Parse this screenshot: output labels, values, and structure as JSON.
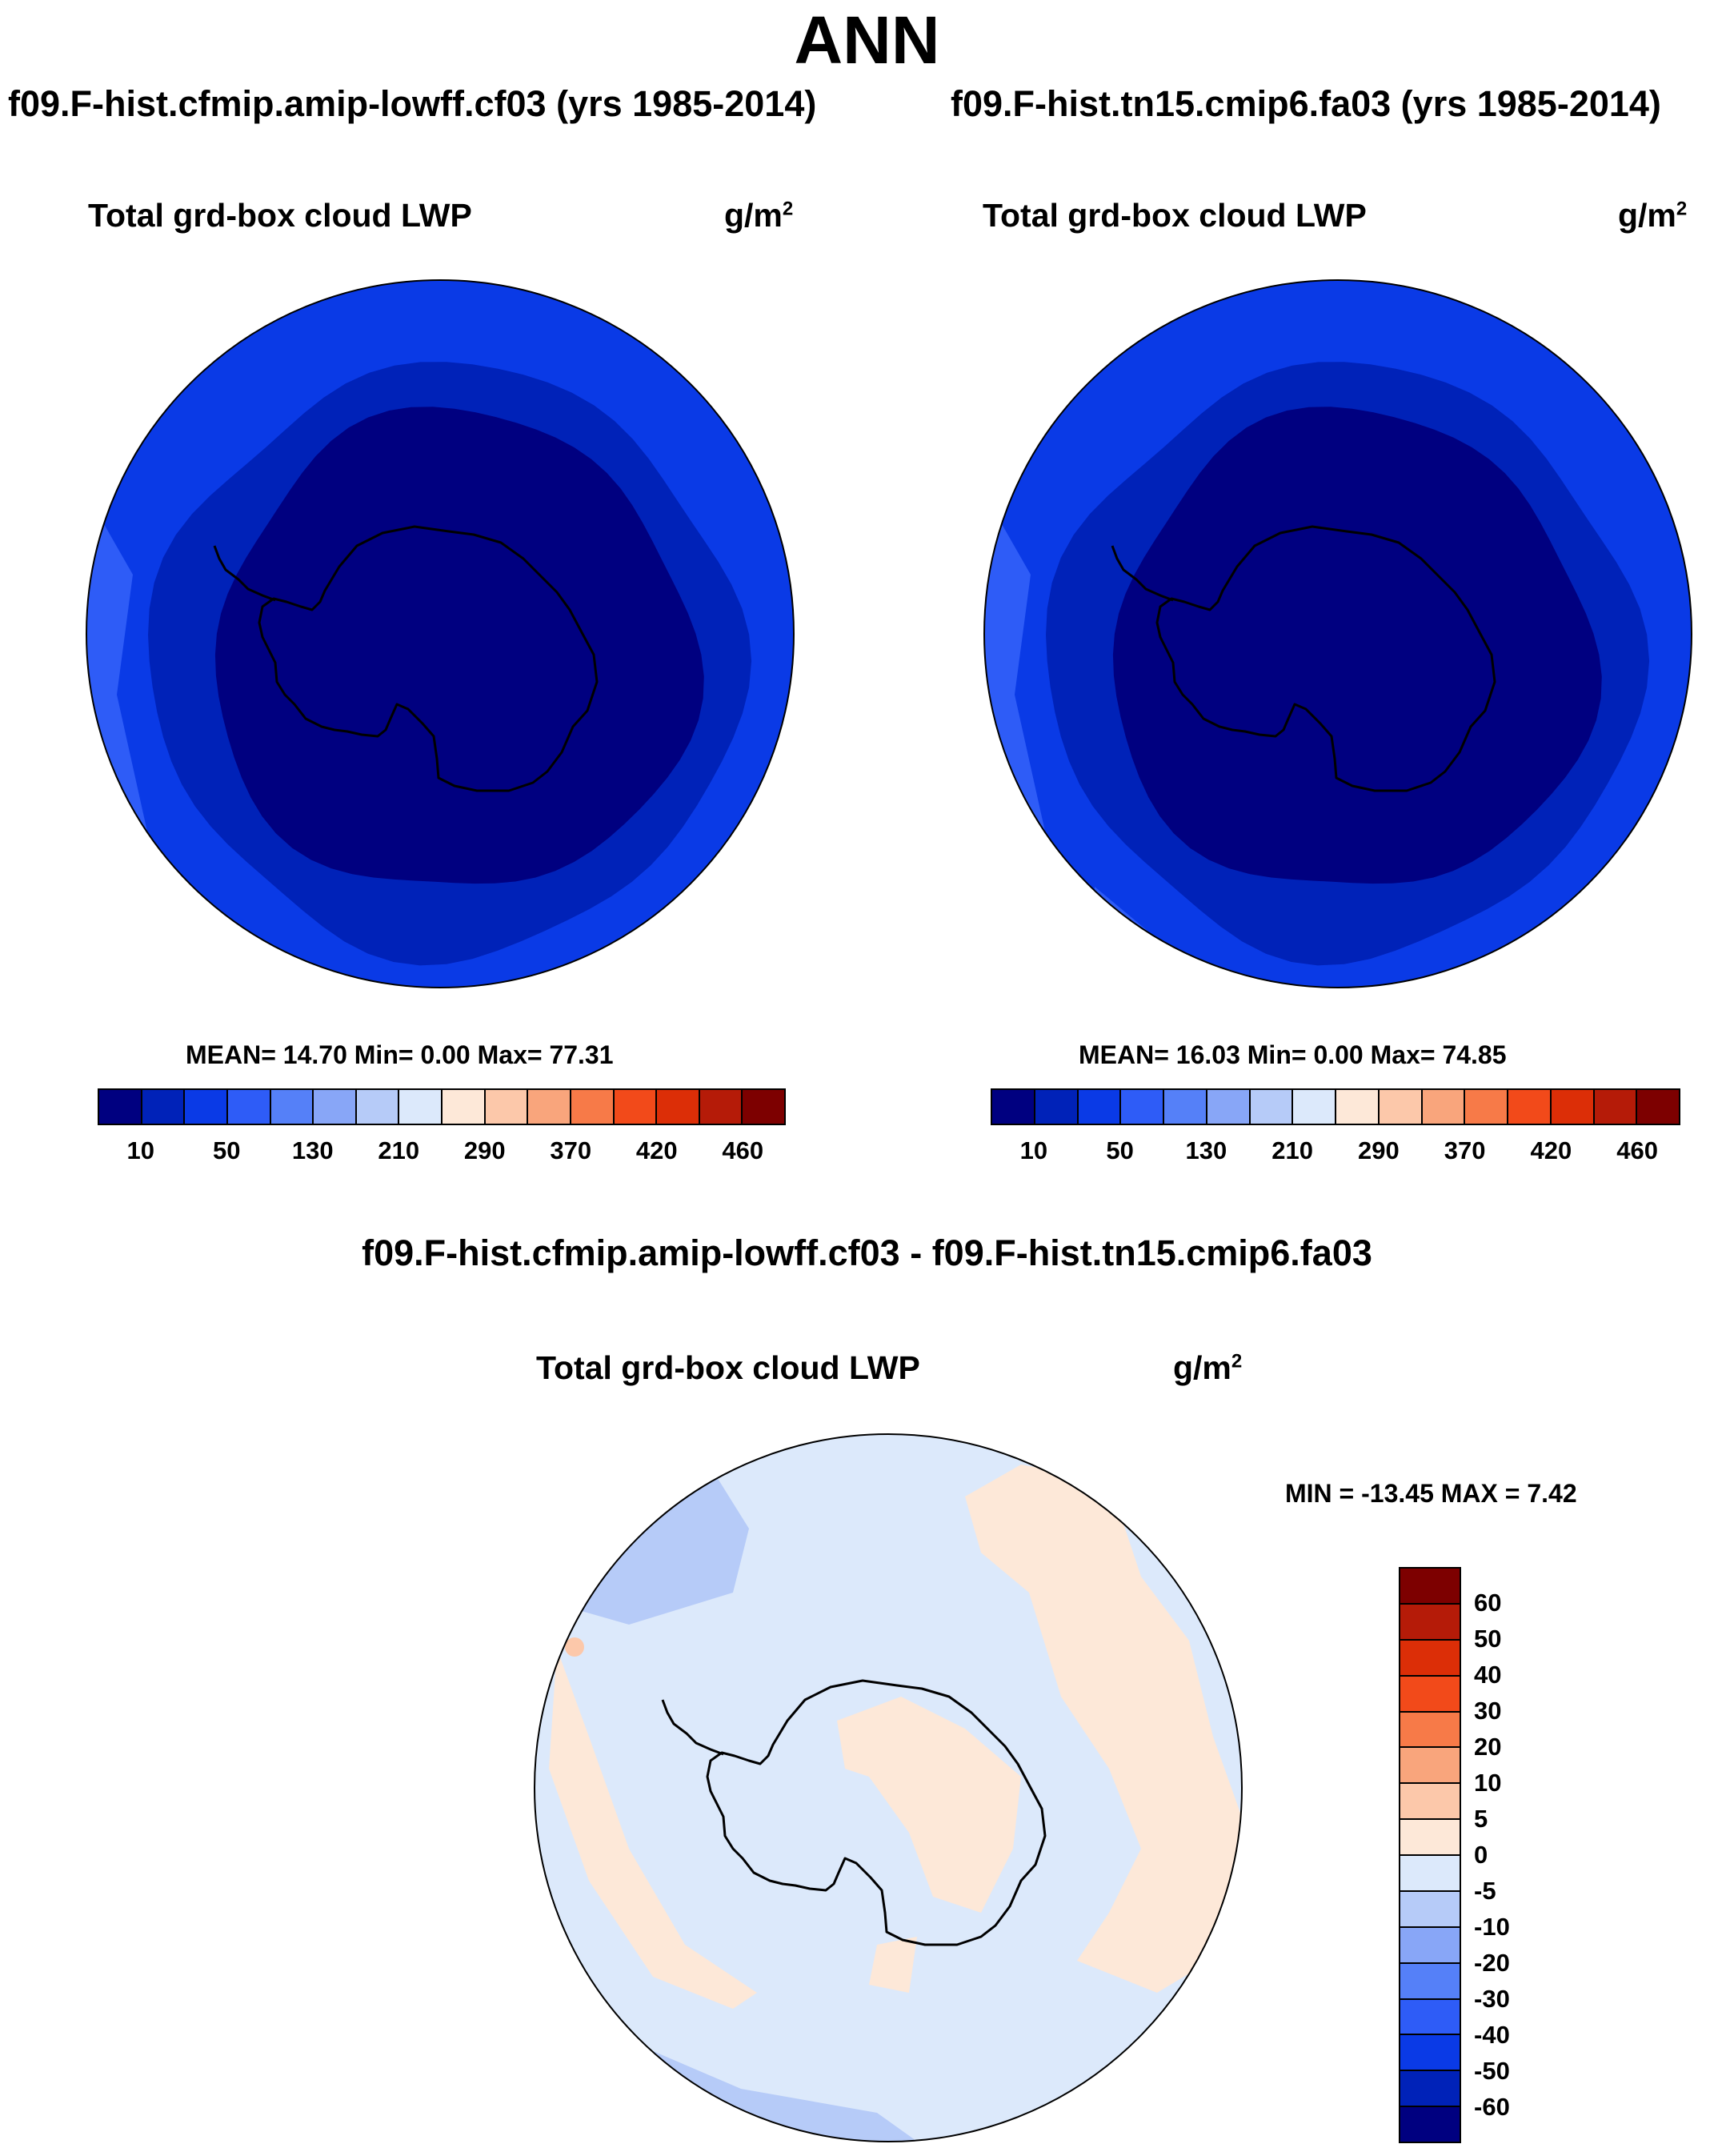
{
  "title": "ANN",
  "chart_data": [
    {
      "type": "heatmap",
      "projection": "south-polar stereographic",
      "case_title": "f09.F-hist.cfmip.amip-lowff.cf03 (yrs 1985-2014)",
      "variable": "Total grd-box cloud LWP",
      "units": "g/m",
      "units_sup": "2",
      "stats": {
        "mean": "14.70",
        "min": "0.00",
        "max": "77.31"
      },
      "stats_text": "MEAN=  14.70  Min=    0.00  Max=  77.31",
      "levels": [
        "10",
        "50",
        "130",
        "210",
        "290",
        "370",
        "420",
        "460"
      ],
      "colors": [
        "#000080",
        "#0022b8",
        "#0a3ae6",
        "#2e5cf7",
        "#5580f8",
        "#88a6f7",
        "#b6cbf8",
        "#dce9fb",
        "#fde8d8",
        "#fcc8aa",
        "#f9a57c",
        "#f77a48",
        "#f24a1a",
        "#dc2e07",
        "#b51b08",
        "#7d0000"
      ]
    },
    {
      "type": "heatmap",
      "projection": "south-polar stereographic",
      "case_title": "f09.F-hist.tn15.cmip6.fa03 (yrs 1985-2014)",
      "variable": "Total grd-box cloud LWP",
      "units": "g/m",
      "units_sup": "2",
      "stats": {
        "mean": "16.03",
        "min": "0.00",
        "max": "74.85"
      },
      "stats_text": "MEAN=  16.03  Min=    0.00  Max=  74.85",
      "levels": [
        "10",
        "50",
        "130",
        "210",
        "290",
        "370",
        "420",
        "460"
      ],
      "colors": [
        "#000080",
        "#0022b8",
        "#0a3ae6",
        "#2e5cf7",
        "#5580f8",
        "#88a6f7",
        "#b6cbf8",
        "#dce9fb",
        "#fde8d8",
        "#fcc8aa",
        "#f9a57c",
        "#f77a48",
        "#f24a1a",
        "#dc2e07",
        "#b51b08",
        "#7d0000"
      ]
    },
    {
      "type": "heatmap",
      "projection": "south-polar stereographic",
      "case_title": "f09.F-hist.cfmip.amip-lowff.cf03 - f09.F-hist.tn15.cmip6.fa03",
      "variable": "Total grd-box cloud LWP",
      "units": "g/m",
      "units_sup": "2",
      "stats": {
        "min": "-13.45",
        "max": "7.42"
      },
      "stats_text": "MIN = -13.45 MAX =   7.42",
      "levels": [
        "60",
        "50",
        "40",
        "30",
        "20",
        "10",
        "5",
        "0",
        "-5",
        "-10",
        "-20",
        "-30",
        "-40",
        "-50",
        "-60"
      ],
      "colors": [
        "#7d0000",
        "#b51b08",
        "#dc2e07",
        "#f24a1a",
        "#f77a48",
        "#f9a57c",
        "#fcc8aa",
        "#fde8d8",
        "#dce9fb",
        "#b6cbf8",
        "#88a6f7",
        "#5580f8",
        "#2e5cf7",
        "#0a3ae6",
        "#0022b8",
        "#000080"
      ]
    }
  ]
}
